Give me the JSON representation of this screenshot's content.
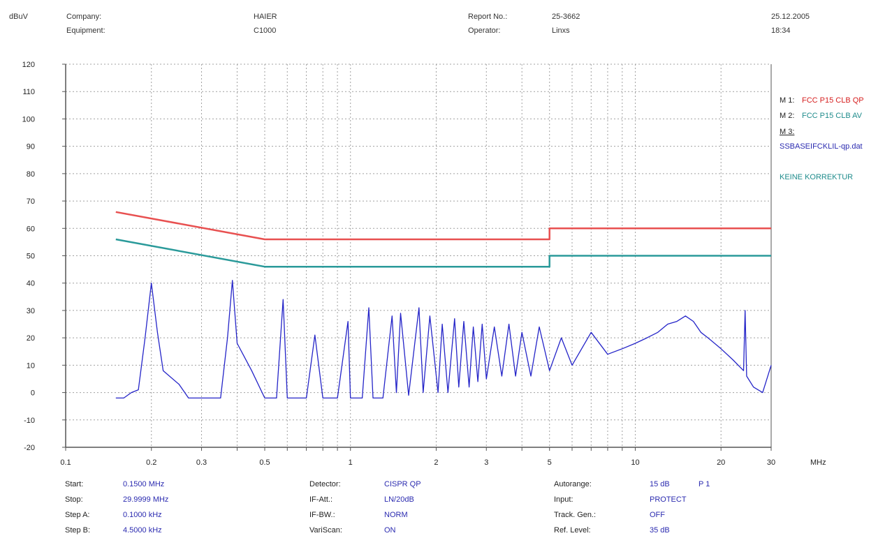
{
  "header": {
    "yunit": "dBuV",
    "company_label": "Company:",
    "company_value": "HAIER",
    "equipment_label": "Equipment:",
    "equipment_value": "C1000",
    "report_label": "Report No.:",
    "report_value": "25-3662",
    "operator_label": "Operator:",
    "operator_value": "Linxs",
    "date": "25.12.2005",
    "time": "18:34"
  },
  "legend": {
    "m1_label": "M 1:",
    "m1_value": "FCC P15 CLB QP",
    "m2_label": "M 2:",
    "m2_value": "FCC P15 CLB AV",
    "m3_label": "M 3:",
    "m3_value": "SSBASEIFCKLIL-qp.dat",
    "note": "KEINE KORREKTUR"
  },
  "footer": {
    "col1": [
      {
        "label": "Start:",
        "value": "0.1500 MHz"
      },
      {
        "label": "Stop:",
        "value": "29.9999 MHz"
      },
      {
        "label": "Step A:",
        "value": "0.1000 kHz"
      },
      {
        "label": "Step B:",
        "value": "4.5000 kHz"
      }
    ],
    "col2": [
      {
        "label": "Detector:",
        "value": "CISPR QP"
      },
      {
        "label": "IF-Att.:",
        "value": "LN/20dB"
      },
      {
        "label": "IF-BW.:",
        "value": "NORM"
      },
      {
        "label": "VariScan:",
        "value": "ON"
      }
    ],
    "col3": [
      {
        "label": "Autorange:",
        "value": "15 dB"
      },
      {
        "label": "Input:",
        "value": "PROTECT"
      },
      {
        "label": "Track. Gen.:",
        "value": "OFF"
      },
      {
        "label": "Ref. Level:",
        "value": "35 dB"
      }
    ],
    "autorange_extra": "P 1"
  },
  "colors": {
    "limit_qp": "#e85050",
    "limit_av": "#2a9a9a",
    "trace": "#2424c8",
    "grid": "#a0a0a0",
    "axis": "#555555"
  },
  "chart_data": {
    "type": "line",
    "xscale": "log",
    "xlim": [
      0.1,
      30
    ],
    "ylim": [
      -20,
      120
    ],
    "xlabel": "MHz",
    "ylabel": "dBuV",
    "grid": true,
    "x_tick_labels": [
      "0.1",
      "0.2",
      "0.3",
      "0.5",
      "1",
      "2",
      "3",
      "5",
      "10",
      "20",
      "30"
    ],
    "y_tick_labels": [
      "120",
      "110",
      "100",
      "90",
      "80",
      "70",
      "60",
      "50",
      "40",
      "30",
      "20",
      "10",
      "0",
      "-10",
      "-20"
    ],
    "series": [
      {
        "name": "FCC P15 CLB QP",
        "x": [
          0.15,
          0.5,
          5,
          5,
          30
        ],
        "y": [
          66,
          56,
          56,
          60,
          60
        ]
      },
      {
        "name": "FCC P15 CLB AV",
        "x": [
          0.15,
          0.5,
          5,
          5,
          30
        ],
        "y": [
          56,
          46,
          46,
          50,
          50
        ]
      },
      {
        "name": "SSBASEIFCKLIL-qp.dat",
        "x": [
          0.15,
          0.16,
          0.17,
          0.18,
          0.19,
          0.2,
          0.21,
          0.22,
          0.25,
          0.27,
          0.35,
          0.37,
          0.385,
          0.4,
          0.45,
          0.5,
          0.55,
          0.58,
          0.6,
          0.7,
          0.75,
          0.8,
          0.9,
          0.98,
          1.0,
          1.1,
          1.16,
          1.2,
          1.3,
          1.4,
          1.45,
          1.5,
          1.6,
          1.74,
          1.8,
          1.9,
          2.03,
          2.1,
          2.2,
          2.32,
          2.4,
          2.5,
          2.61,
          2.7,
          2.8,
          2.9,
          3.0,
          3.2,
          3.4,
          3.6,
          3.8,
          4.0,
          4.3,
          4.6,
          5.0,
          5.5,
          6.0,
          7.0,
          8.0,
          9.0,
          10.0,
          11.0,
          12.0,
          13.0,
          14.0,
          15.0,
          16.0,
          17.0,
          18.0,
          20.0,
          22.0,
          24.0,
          24.3,
          24.6,
          26.0,
          28.0,
          30.0
        ],
        "y": [
          -2,
          -2,
          0,
          1,
          20,
          40,
          22,
          8,
          3,
          -2,
          -2,
          20,
          41,
          18,
          8,
          -2,
          -2,
          34,
          -2,
          -2,
          21,
          -2,
          -2,
          26,
          -2,
          -2,
          31,
          -2,
          -2,
          28,
          0,
          29,
          -1,
          31,
          0,
          28,
          0,
          25,
          0,
          27,
          2,
          26,
          2,
          24,
          4,
          25,
          5,
          24,
          6,
          25,
          6,
          22,
          6,
          24,
          8,
          20,
          10,
          22,
          14,
          16,
          18,
          20,
          22,
          25,
          26,
          28,
          26,
          22,
          20,
          16,
          12,
          8,
          30,
          6,
          2,
          0,
          10
        ]
      }
    ]
  }
}
